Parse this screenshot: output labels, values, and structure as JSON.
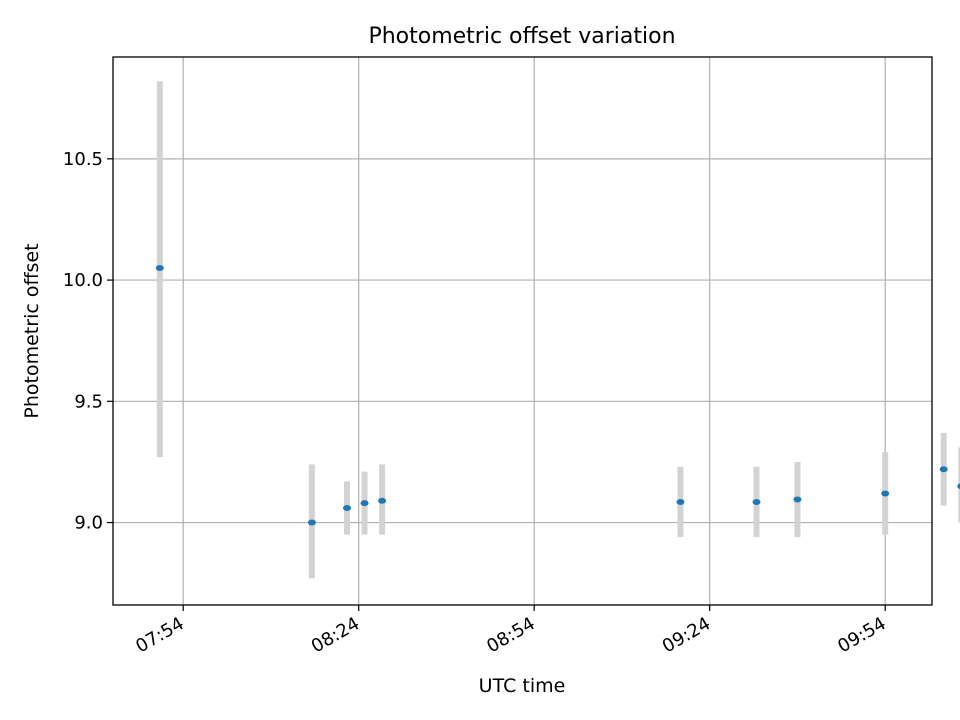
{
  "chart_data": {
    "type": "scatter",
    "title": "Photometric offset variation",
    "xlabel": "UTC time",
    "ylabel": "Photometric offset",
    "xlim": [
      "07:42",
      "10:02"
    ],
    "ylim": [
      8.66,
      10.92
    ],
    "xticks": [
      "07:54",
      "08:24",
      "08:54",
      "09:24",
      "09:54"
    ],
    "yticks": [
      9.0,
      9.5,
      10.0,
      10.5
    ],
    "ytick_labels": [
      "9.0",
      "9.5",
      "10.0",
      "10.5"
    ],
    "grid": true,
    "error_bar_color": "#d3d3d3",
    "marker_color": "#1f77b4",
    "points": [
      {
        "time": "07:50",
        "y": 10.05,
        "err_low": 9.27,
        "err_high": 10.82
      },
      {
        "time": "08:16",
        "y": 9.0,
        "err_low": 8.77,
        "err_high": 9.24
      },
      {
        "time": "08:22",
        "y": 9.06,
        "err_low": 8.95,
        "err_high": 9.17
      },
      {
        "time": "08:25",
        "y": 9.08,
        "err_low": 8.95,
        "err_high": 9.21
      },
      {
        "time": "08:28",
        "y": 9.09,
        "err_low": 8.95,
        "err_high": 9.24
      },
      {
        "time": "09:19",
        "y": 9.085,
        "err_low": 8.94,
        "err_high": 9.23
      },
      {
        "time": "09:32",
        "y": 9.085,
        "err_low": 8.94,
        "err_high": 9.23
      },
      {
        "time": "09:39",
        "y": 9.095,
        "err_low": 8.94,
        "err_high": 9.25
      },
      {
        "time": "09:54",
        "y": 9.12,
        "err_low": 8.95,
        "err_high": 9.29
      },
      {
        "time": "10:04",
        "y": 9.22,
        "err_low": 9.07,
        "err_high": 9.37
      },
      {
        "time": "10:07",
        "y": 9.15,
        "err_low": 9.0,
        "err_high": 9.31
      }
    ]
  }
}
